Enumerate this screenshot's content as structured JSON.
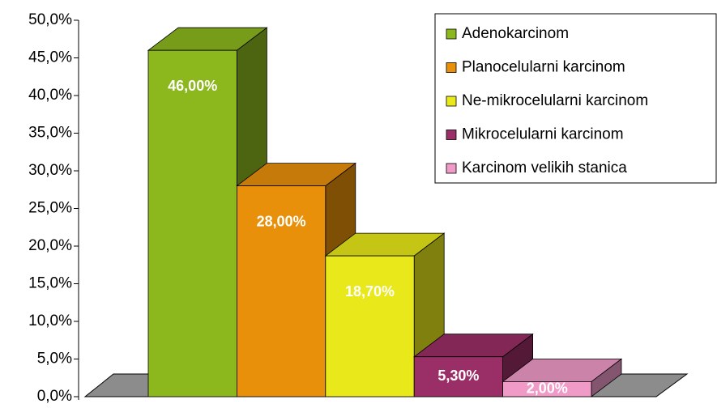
{
  "chart_data": {
    "type": "bar3d",
    "series": [
      {
        "name": "Adenokarcinom",
        "color": "#8cb81e",
        "values": [
          46
        ],
        "value_labels": [
          "46,00%"
        ]
      },
      {
        "name": "Planocelularni karcinom",
        "color": "#e8900a",
        "values": [
          28
        ],
        "value_labels": [
          "28,00%"
        ]
      },
      {
        "name": "Ne-mikrocelularni karcinom",
        "color": "#e8e81a",
        "values": [
          18.7
        ],
        "value_labels": [
          "18,70%"
        ]
      },
      {
        "name": "Mikrocelularni karcinom",
        "color": "#9a2e66",
        "values": [
          5.3
        ],
        "value_labels": [
          "5,30%"
        ]
      },
      {
        "name": "Karcinom velikih stanica",
        "color": "#f09ac8",
        "values": [
          2
        ],
        "value_labels": [
          "2,00%"
        ]
      }
    ],
    "ylim": [
      0,
      50
    ],
    "yticks": [
      {
        "value": 0,
        "label": "0,0%"
      },
      {
        "value": 5,
        "label": "5,0%"
      },
      {
        "value": 10,
        "label": "10,0%"
      },
      {
        "value": 15,
        "label": "15,0%"
      },
      {
        "value": 20,
        "label": "20,0%"
      },
      {
        "value": 25,
        "label": "25,0%"
      },
      {
        "value": 30,
        "label": "30,0%"
      },
      {
        "value": 35,
        "label": "35,0%"
      },
      {
        "value": 40,
        "label": "40,0%"
      },
      {
        "value": 45,
        "label": "45,0%"
      },
      {
        "value": 50,
        "label": "50,0%"
      }
    ],
    "legend": "top-right"
  }
}
